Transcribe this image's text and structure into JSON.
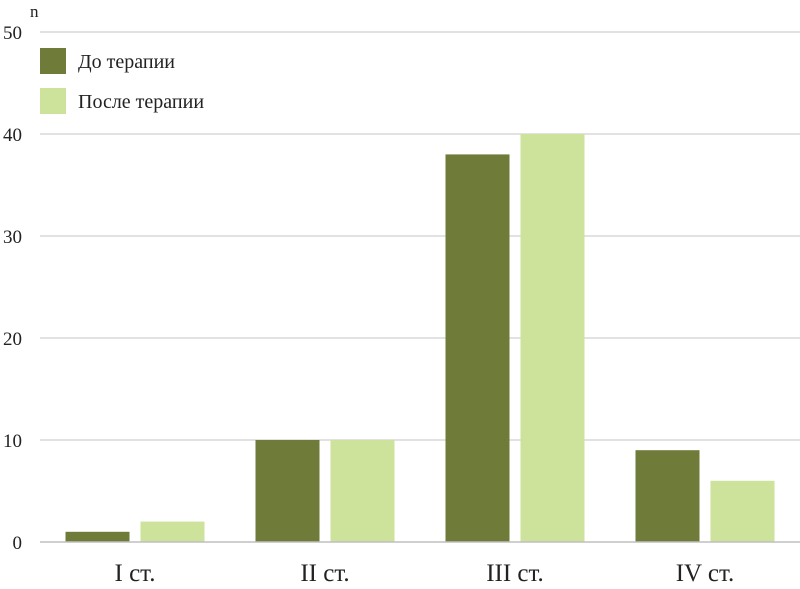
{
  "chart_data": {
    "type": "bar",
    "ylabel": "n",
    "xlabel": "",
    "title": "",
    "ylim": [
      0,
      50
    ],
    "yticks": [
      0,
      10,
      20,
      30,
      40,
      50
    ],
    "categories": [
      "I ст.",
      "II ст.",
      "III ст.",
      "IV ст."
    ],
    "series": [
      {
        "name": "До терапии",
        "values": [
          1,
          10,
          38,
          9
        ],
        "color": "#6f7b38"
      },
      {
        "name": "После терапии",
        "values": [
          2,
          10,
          40,
          6
        ],
        "color": "#cde29b"
      }
    ],
    "grid": true,
    "legend_position": "top-left"
  }
}
